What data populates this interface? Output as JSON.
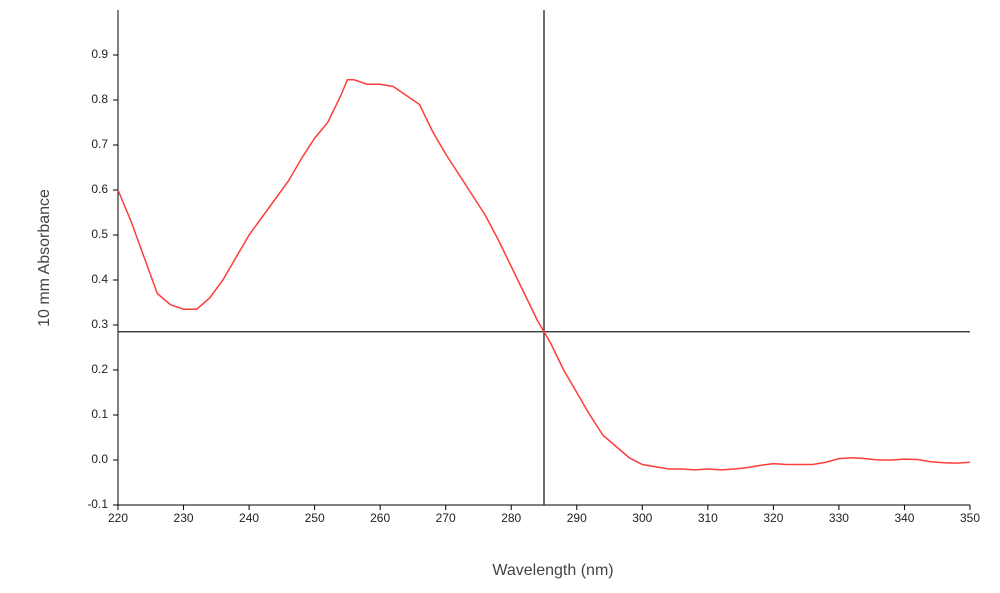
{
  "chart_data": {
    "type": "line",
    "xlabel": "Wavelength (nm)",
    "ylabel": "10 mm Absorbance",
    "x": [
      220,
      222,
      224,
      226,
      228,
      230,
      232,
      234,
      236,
      238,
      240,
      242,
      244,
      246,
      248,
      250,
      252,
      254,
      255,
      256,
      258,
      260,
      262,
      264,
      266,
      268,
      270,
      272,
      274,
      276,
      278,
      280,
      282,
      284,
      285,
      286,
      288,
      290,
      292,
      294,
      296,
      298,
      300,
      302,
      304,
      306,
      308,
      310,
      312,
      314,
      316,
      318,
      320,
      322,
      324,
      326,
      328,
      330,
      332,
      334,
      336,
      338,
      340,
      342,
      344,
      346,
      348,
      350
    ],
    "series": [
      {
        "name": "Absorbance",
        "color": "#ff3c3c",
        "values": [
          0.6,
          0.53,
          0.45,
          0.37,
          0.345,
          0.335,
          0.335,
          0.36,
          0.4,
          0.45,
          0.5,
          0.54,
          0.58,
          0.62,
          0.67,
          0.715,
          0.75,
          0.81,
          0.845,
          0.845,
          0.835,
          0.835,
          0.83,
          0.81,
          0.79,
          0.73,
          0.68,
          0.635,
          0.59,
          0.545,
          0.49,
          0.43,
          0.37,
          0.31,
          0.285,
          0.26,
          0.2,
          0.15,
          0.1,
          0.055,
          0.03,
          0.005,
          -0.01,
          -0.015,
          -0.02,
          -0.02,
          -0.022,
          -0.02,
          -0.022,
          -0.02,
          -0.017,
          -0.012,
          -0.008,
          -0.01,
          -0.01,
          -0.01,
          -0.005,
          0.003,
          0.005,
          0.003,
          0,
          0,
          0.002,
          0.001,
          -0.004,
          -0.006,
          -0.007,
          -0.005
        ]
      }
    ],
    "xlim": [
      220,
      350
    ],
    "xticks": [
      220,
      230,
      240,
      250,
      260,
      270,
      280,
      290,
      300,
      310,
      320,
      330,
      340,
      350
    ],
    "ylim": [
      -0.1,
      1.0
    ],
    "yticks": [
      -0.1,
      {
        "value": 0,
        "label": "0.0"
      },
      0.1,
      0.2,
      0.3,
      0.4,
      0.5,
      0.6,
      0.7,
      0.8,
      0.9
    ],
    "cursor": {
      "x": 285,
      "y": 0.285
    },
    "grid": false
  }
}
